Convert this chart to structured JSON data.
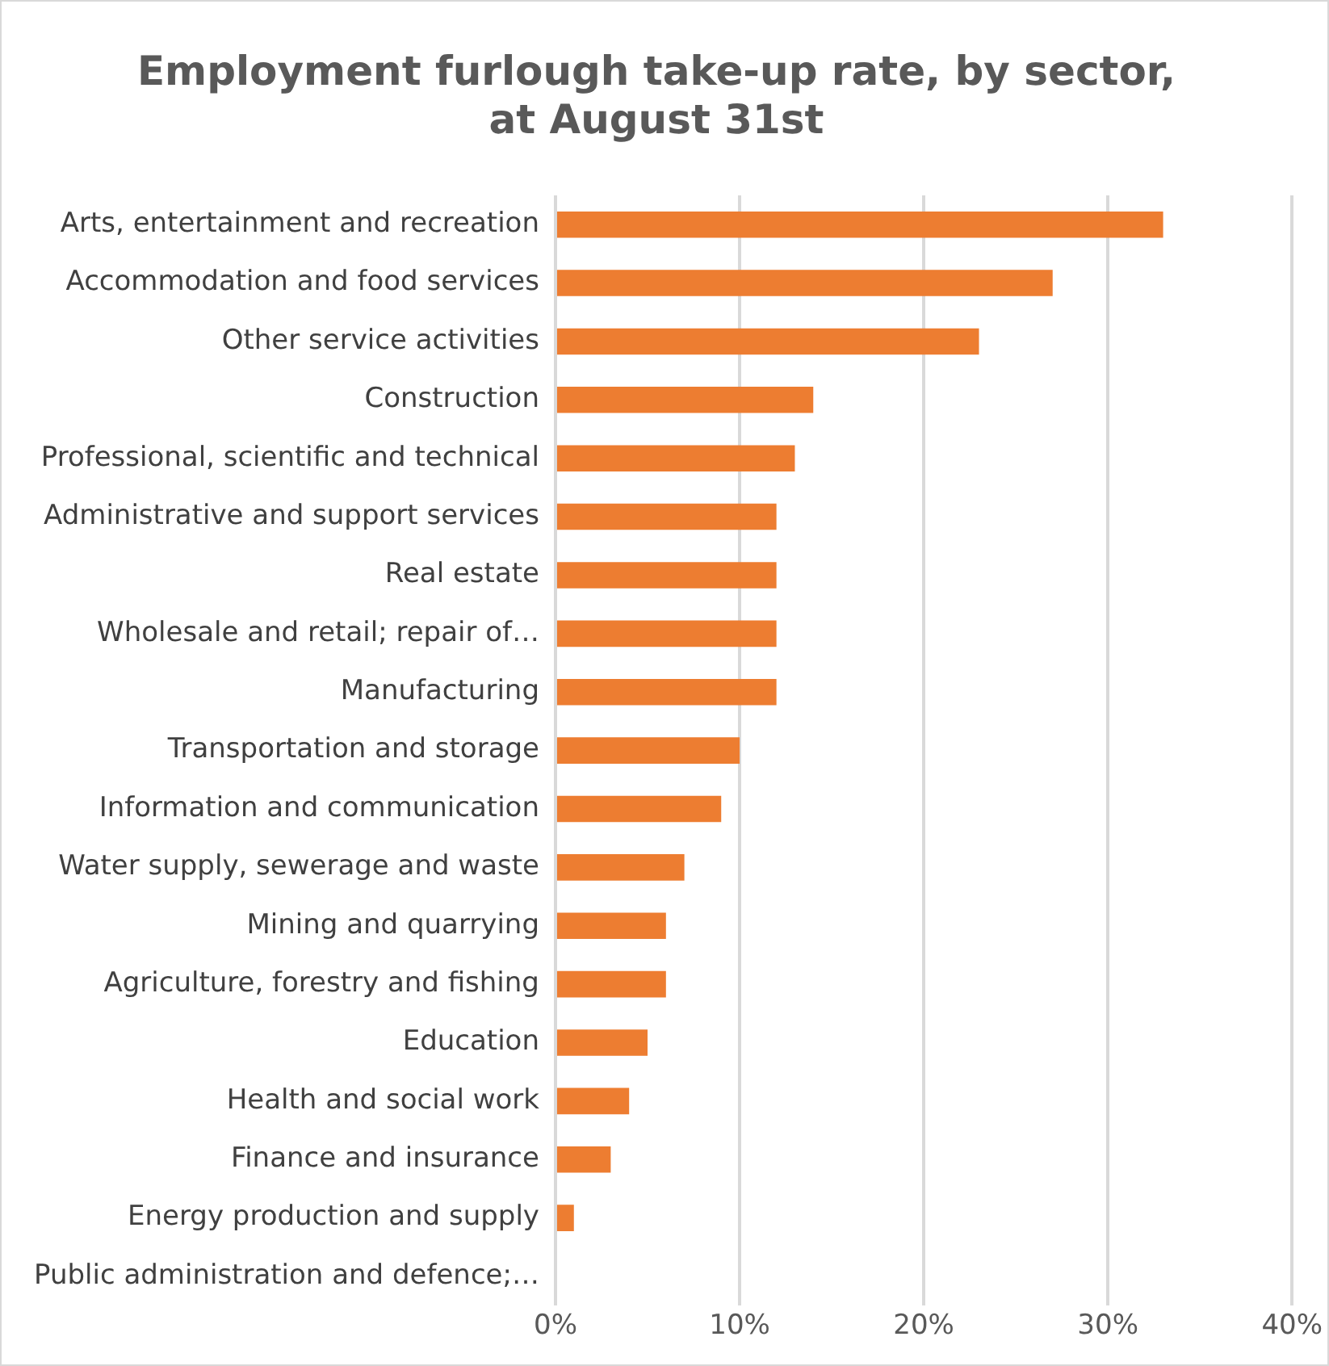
{
  "chart_data": {
    "type": "bar",
    "orientation": "horizontal",
    "title": [
      "Employment furlough take-up rate, by sector,",
      "at August 31st"
    ],
    "categories": [
      "Arts, entertainment and recreation",
      "Accommodation and food services",
      "Other service activities",
      "Construction",
      "Professional, scientific and technical",
      "Administrative and support services",
      "Real estate",
      "Wholesale and retail; repair of…",
      "Manufacturing",
      "Transportation and storage",
      "Information and communication",
      "Water supply, sewerage and waste",
      "Mining and quarrying",
      "Agriculture, forestry and fishing",
      "Education",
      "Health and social work",
      "Finance and insurance",
      "Energy production and supply",
      "Public administration and defence;…"
    ],
    "values": [
      33,
      27,
      23,
      14,
      13,
      12,
      12,
      12,
      12,
      10,
      9,
      7,
      6,
      6,
      5,
      4,
      3,
      1,
      0
    ],
    "color": "#ed7d31",
    "xlim": [
      0,
      40
    ],
    "xticks": [
      {
        "value": 0,
        "label": "0%"
      },
      {
        "value": 10,
        "label": "10%"
      },
      {
        "value": 20,
        "label": "20%"
      },
      {
        "value": 30,
        "label": "30%"
      },
      {
        "value": 40,
        "label": "40%"
      }
    ],
    "grid": "x",
    "legend": false
  }
}
